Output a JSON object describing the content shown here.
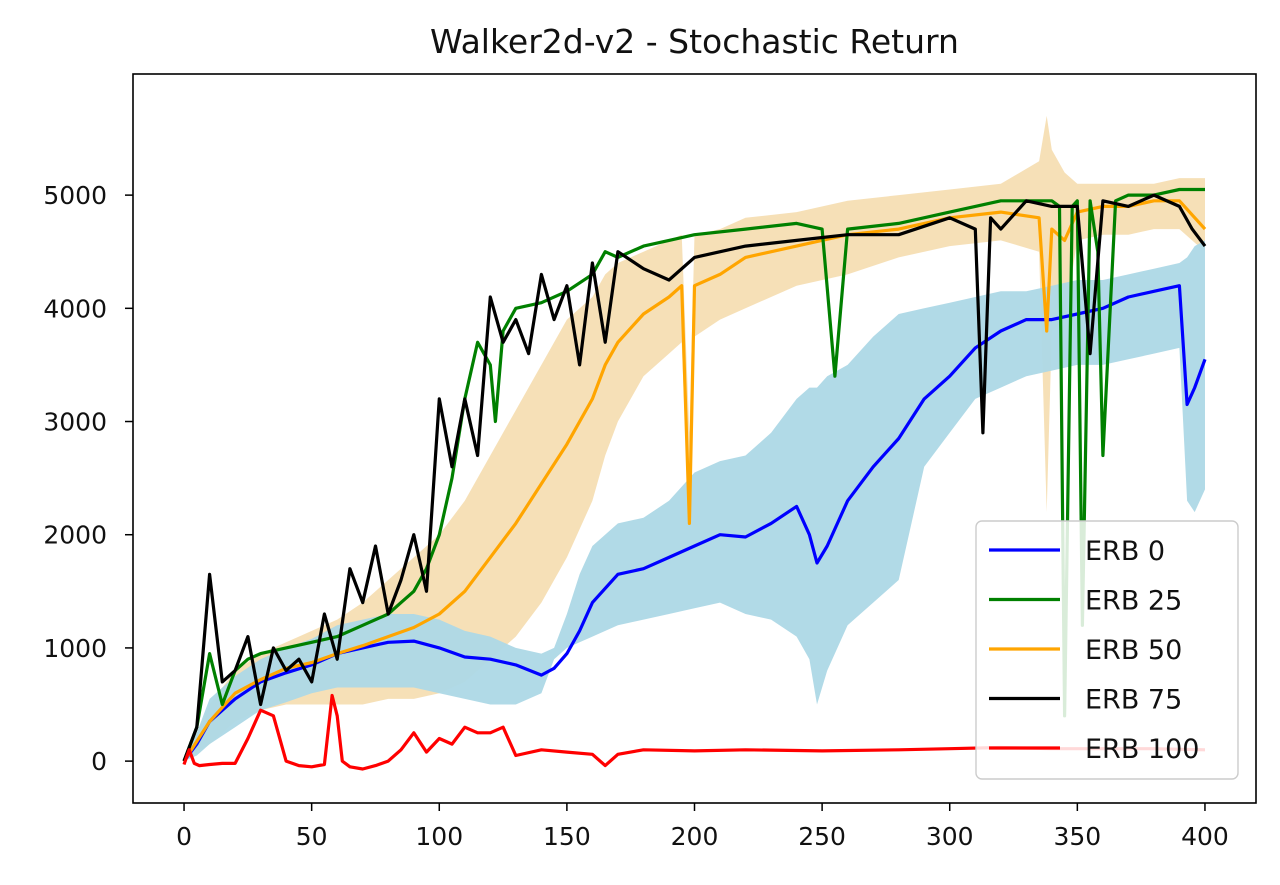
{
  "chart_data": {
    "type": "line",
    "title": "Walker2d-v2 - Stochastic Return",
    "xlabel": "",
    "ylabel": "",
    "xlim": [
      -20,
      420
    ],
    "ylim": [
      -370,
      6070
    ],
    "x_ticks": [
      0,
      50,
      100,
      150,
      200,
      250,
      300,
      350,
      400
    ],
    "y_ticks": [
      0,
      1000,
      2000,
      3000,
      4000,
      5000
    ],
    "x_tick_labels": [
      "0",
      "50",
      "100",
      "150",
      "200",
      "250",
      "300",
      "350",
      "400"
    ],
    "y_tick_labels": [
      "0",
      "1000",
      "2000",
      "3000",
      "4000",
      "5000"
    ],
    "grid": false,
    "legend_position": "lower-right",
    "colors": {
      "ERB 0": "#0000ff",
      "ERB 25": "#008000",
      "ERB 50": "#ffa500",
      "ERB 75": "#000000",
      "ERB 100": "#ff0000",
      "band_ERB 0": "#add8e6",
      "band_ERB 50": "#f5deb3"
    },
    "series": [
      {
        "name": "ERB 0",
        "x": [
          0,
          5,
          10,
          20,
          30,
          40,
          50,
          60,
          70,
          80,
          90,
          100,
          110,
          120,
          130,
          140,
          145,
          150,
          155,
          160,
          170,
          180,
          190,
          200,
          210,
          220,
          230,
          240,
          245,
          248,
          252,
          260,
          270,
          280,
          290,
          300,
          310,
          320,
          330,
          340,
          350,
          360,
          370,
          380,
          390,
          393,
          396,
          400
        ],
        "y": [
          0,
          150,
          350,
          550,
          700,
          780,
          850,
          950,
          1000,
          1050,
          1060,
          1000,
          920,
          900,
          850,
          760,
          820,
          950,
          1150,
          1400,
          1650,
          1700,
          1800,
          1900,
          2000,
          1980,
          2100,
          2250,
          2000,
          1750,
          1900,
          2300,
          2600,
          2850,
          3200,
          3400,
          3650,
          3800,
          3900,
          3900,
          3950,
          4000,
          4100,
          4150,
          4200,
          3150,
          3300,
          3550
        ],
        "band_low": [
          0,
          50,
          150,
          300,
          450,
          520,
          600,
          650,
          650,
          650,
          650,
          600,
          550,
          500,
          500,
          600,
          900,
          1000,
          1050,
          1100,
          1200,
          1250,
          1300,
          1350,
          1400,
          1300,
          1250,
          1100,
          900,
          500,
          800,
          1200,
          1400,
          1600,
          2600,
          2900,
          3200,
          3300,
          3400,
          3450,
          3500,
          3500,
          3550,
          3600,
          3650,
          2300,
          2200,
          2400
        ],
        "band_high": [
          0,
          250,
          550,
          750,
          900,
          1000,
          1080,
          1200,
          1250,
          1300,
          1300,
          1250,
          1150,
          1100,
          1000,
          950,
          1000,
          1300,
          1650,
          1900,
          2100,
          2150,
          2300,
          2550,
          2650,
          2700,
          2900,
          3200,
          3300,
          3300,
          3400,
          3500,
          3750,
          3950,
          4000,
          4050,
          4100,
          4150,
          4150,
          4200,
          4250,
          4250,
          4300,
          4350,
          4400,
          4450,
          4550,
          4600
        ]
      },
      {
        "name": "ERB 25",
        "x": [
          0,
          5,
          10,
          15,
          20,
          25,
          30,
          40,
          50,
          60,
          70,
          80,
          85,
          90,
          95,
          100,
          105,
          110,
          115,
          120,
          122,
          125,
          130,
          140,
          150,
          160,
          165,
          170,
          180,
          190,
          200,
          220,
          240,
          250,
          255,
          260,
          280,
          300,
          320,
          340,
          343,
          345,
          348,
          350,
          352,
          355,
          358,
          360,
          365,
          370,
          380,
          390,
          400
        ],
        "y": [
          0,
          300,
          950,
          500,
          800,
          900,
          950,
          1000,
          1050,
          1100,
          1200,
          1300,
          1400,
          1500,
          1700,
          2000,
          2500,
          3200,
          3700,
          3500,
          3000,
          3800,
          4000,
          4050,
          4150,
          4300,
          4500,
          4450,
          4550,
          4600,
          4650,
          4700,
          4750,
          4700,
          3400,
          4700,
          4750,
          4850,
          4950,
          4950,
          4900,
          400,
          4900,
          4950,
          1200,
          4950,
          4500,
          2700,
          4950,
          5000,
          5000,
          5050,
          5050
        ]
      },
      {
        "name": "ERB 50",
        "x": [
          0,
          10,
          20,
          30,
          40,
          50,
          60,
          70,
          80,
          90,
          100,
          110,
          120,
          130,
          140,
          150,
          160,
          165,
          170,
          180,
          190,
          195,
          198,
          200,
          210,
          220,
          240,
          260,
          280,
          300,
          320,
          335,
          338,
          340,
          345,
          350,
          360,
          370,
          380,
          390,
          400
        ],
        "y": [
          0,
          350,
          600,
          720,
          820,
          870,
          950,
          1020,
          1100,
          1180,
          1300,
          1500,
          1800,
          2100,
          2450,
          2800,
          3200,
          3500,
          3700,
          3950,
          4100,
          4200,
          2100,
          4200,
          4300,
          4450,
          4550,
          4650,
          4700,
          4800,
          4850,
          4800,
          3800,
          4700,
          4600,
          4850,
          4900,
          4900,
          4950,
          4950,
          4700
        ],
        "band_low": [
          0,
          150,
          350,
          450,
          500,
          500,
          500,
          500,
          550,
          550,
          600,
          700,
          900,
          1100,
          1400,
          1800,
          2300,
          2700,
          3000,
          3400,
          3600,
          3700,
          2000,
          3750,
          3900,
          4000,
          4200,
          4300,
          4450,
          4550,
          4600,
          4500,
          2200,
          3800,
          3900,
          4600,
          4650,
          4650,
          4700,
          4700,
          4500
        ],
        "band_high": [
          0,
          500,
          800,
          950,
          1050,
          1150,
          1250,
          1400,
          1600,
          1800,
          2000,
          2300,
          2700,
          3100,
          3500,
          3900,
          4100,
          4300,
          4400,
          4500,
          4600,
          4650,
          2900,
          4650,
          4700,
          4800,
          4850,
          4950,
          5000,
          5050,
          5100,
          5300,
          5700,
          5400,
          5200,
          5100,
          5100,
          5100,
          5100,
          5150,
          5150
        ]
      },
      {
        "name": "ERB 75",
        "x": [
          0,
          5,
          10,
          15,
          20,
          25,
          30,
          35,
          40,
          45,
          50,
          55,
          60,
          65,
          70,
          75,
          80,
          85,
          90,
          95,
          100,
          105,
          110,
          115,
          120,
          125,
          130,
          135,
          140,
          145,
          150,
          155,
          160,
          165,
          170,
          180,
          190,
          200,
          220,
          240,
          260,
          280,
          300,
          310,
          313,
          316,
          320,
          330,
          340,
          350,
          355,
          360,
          370,
          380,
          390,
          395,
          400
        ],
        "y": [
          0,
          300,
          1650,
          700,
          800,
          1100,
          500,
          1000,
          800,
          900,
          700,
          1300,
          900,
          1700,
          1400,
          1900,
          1300,
          1600,
          2000,
          1500,
          3200,
          2600,
          3200,
          2700,
          4100,
          3700,
          3900,
          3600,
          4300,
          3900,
          4200,
          3500,
          4400,
          3700,
          4500,
          4350,
          4250,
          4450,
          4550,
          4600,
          4650,
          4650,
          4800,
          4700,
          2900,
          4800,
          4700,
          4950,
          4900,
          4900,
          3600,
          4950,
          4900,
          5000,
          4900,
          4700,
          4550
        ]
      },
      {
        "name": "ERB 100",
        "x": [
          0,
          2,
          4,
          6,
          10,
          15,
          20,
          25,
          30,
          35,
          40,
          45,
          50,
          55,
          58,
          60,
          62,
          65,
          70,
          75,
          80,
          85,
          90,
          95,
          100,
          105,
          110,
          115,
          120,
          125,
          130,
          140,
          150,
          160,
          165,
          170,
          180,
          200,
          220,
          250,
          280,
          300,
          320,
          340,
          360,
          380,
          400
        ],
        "y": [
          -30,
          100,
          -20,
          -40,
          -30,
          -20,
          -20,
          200,
          450,
          400,
          0,
          -40,
          -50,
          -30,
          580,
          400,
          0,
          -50,
          -70,
          -40,
          0,
          100,
          250,
          80,
          200,
          150,
          300,
          250,
          250,
          300,
          50,
          100,
          80,
          60,
          -40,
          60,
          100,
          90,
          100,
          90,
          100,
          110,
          120,
          110,
          110,
          110,
          100
        ]
      }
    ]
  }
}
